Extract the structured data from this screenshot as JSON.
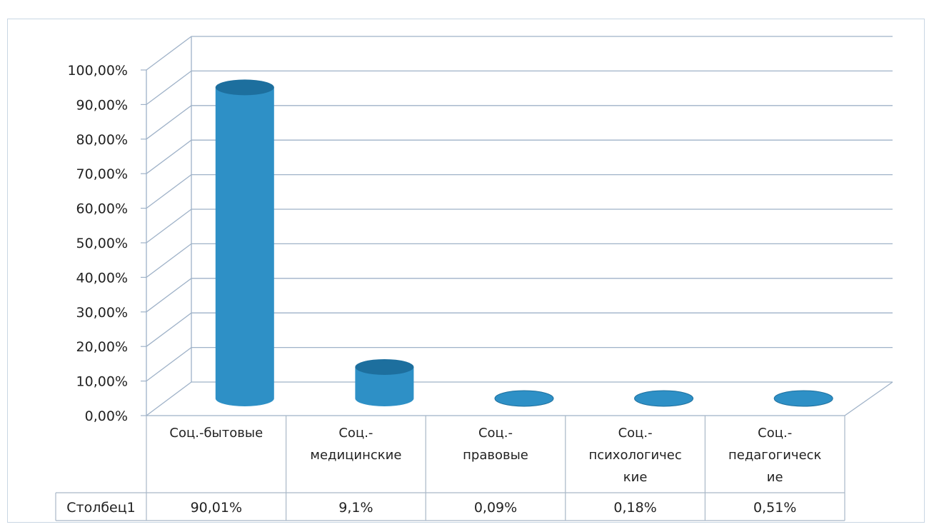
{
  "chart_data": {
    "type": "bar",
    "title": "",
    "categories": [
      "Соц.-бытовые",
      "Соц.-медицинские",
      "Соц.-правовые",
      "Соц.-психологические",
      "Соц.-педагогические"
    ],
    "category_label_lines": [
      [
        "Соц.-бытовые"
      ],
      [
        "Соц.-",
        "медицинские"
      ],
      [
        "Соц.-",
        "правовые"
      ],
      [
        "Соц.-",
        "психологичес",
        "кие"
      ],
      [
        "Соц.-",
        "педагогическ",
        "ие"
      ]
    ],
    "series": [
      {
        "name": "Столбец1",
        "values": [
          90.01,
          9.1,
          0.09,
          0.18,
          0.51
        ],
        "value_labels": [
          "90,01%",
          "9,1%",
          "0,09%",
          "0,18%",
          "0,51%"
        ]
      }
    ],
    "ylim": [
      0,
      100
    ],
    "yticks": [
      "0,00%",
      "10,00%",
      "20,00%",
      "30,00%",
      "40,00%",
      "50,00%",
      "60,00%",
      "70,00%",
      "80,00%",
      "90,00%",
      "100,00%"
    ],
    "grid": true,
    "colors": {
      "bar": "#2e90c6",
      "bar_dark": "#1d6f9e",
      "bar_light": "#5ab3e0",
      "grid": "#9fb2c8",
      "table": "#a9b8c7"
    }
  }
}
